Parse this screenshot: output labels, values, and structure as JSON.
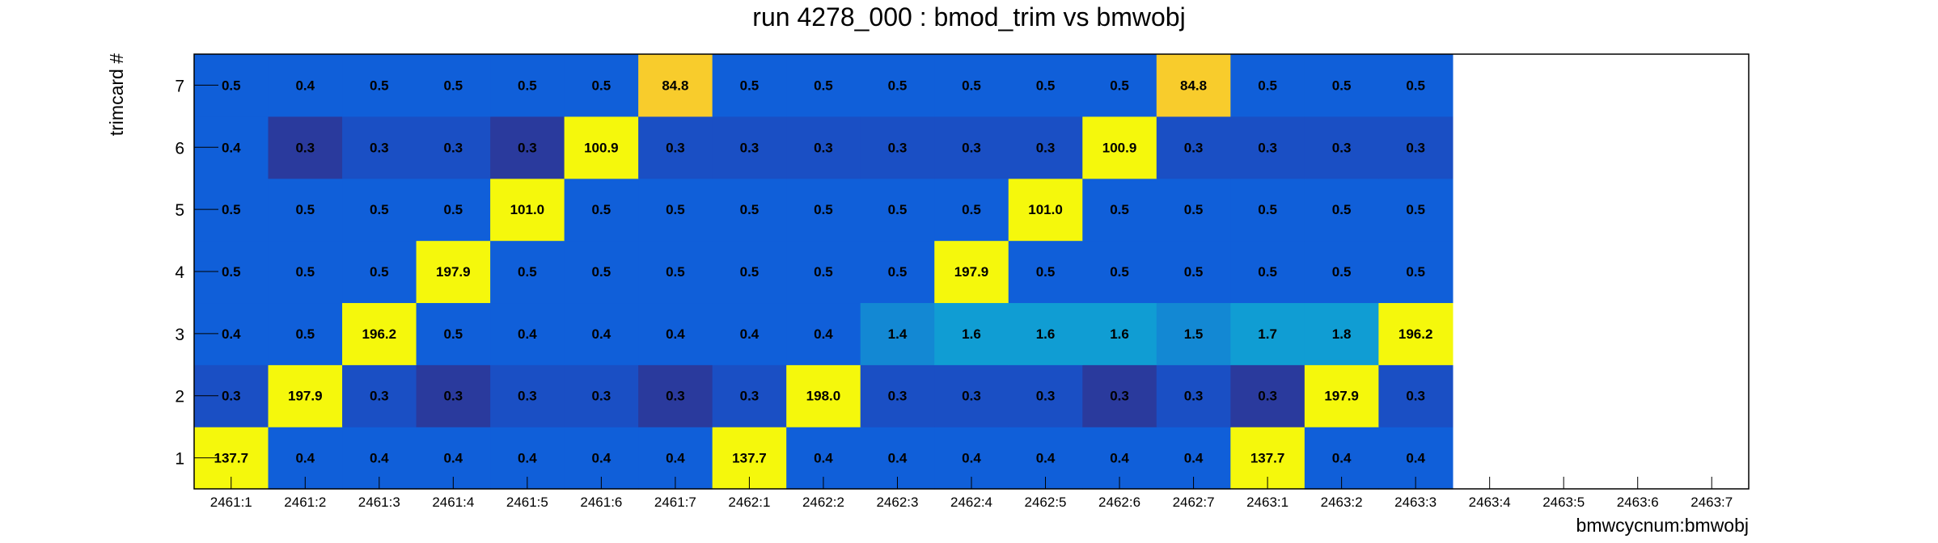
{
  "chart_data": {
    "type": "heatmap",
    "title": "run 4278_000 : bmod_trim vs bmwobj",
    "xlabel": "bmwcycnum:bmwobj",
    "ylabel": "trimcard #",
    "x_categories": [
      "2461:1",
      "2461:2",
      "2461:3",
      "2461:4",
      "2461:5",
      "2461:6",
      "2461:7",
      "2462:1",
      "2462:2",
      "2462:3",
      "2462:4",
      "2462:5",
      "2462:6",
      "2462:7",
      "2463:1",
      "2463:2",
      "2463:3",
      "2463:4",
      "2463:5",
      "2463:6",
      "2463:7"
    ],
    "y_categories": [
      "1",
      "2",
      "3",
      "4",
      "5",
      "6",
      "7"
    ],
    "values": [
      [
        "137.7",
        "0.4",
        "0.4",
        "0.4",
        "0.4",
        "0.4",
        "0.4",
        "137.7",
        "0.4",
        "0.4",
        "0.4",
        "0.4",
        "0.4",
        "0.4",
        "137.7",
        "0.4",
        "0.4",
        null,
        null,
        null,
        null
      ],
      [
        "0.3",
        "197.9",
        "0.3",
        "0.3",
        "0.3",
        "0.3",
        "0.3",
        "0.3",
        "198.0",
        "0.3",
        "0.3",
        "0.3",
        "0.3",
        "0.3",
        "0.3",
        "197.9",
        "0.3",
        null,
        null,
        null,
        null
      ],
      [
        "0.4",
        "0.5",
        "196.2",
        "0.5",
        "0.4",
        "0.4",
        "0.4",
        "0.4",
        "0.4",
        "1.4",
        "1.6",
        "1.6",
        "1.6",
        "1.5",
        "1.7",
        "1.8",
        "196.2",
        null,
        null,
        null,
        null
      ],
      [
        "0.5",
        "0.5",
        "0.5",
        "197.9",
        "0.5",
        "0.5",
        "0.5",
        "0.5",
        "0.5",
        "0.5",
        "197.9",
        "0.5",
        "0.5",
        "0.5",
        "0.5",
        "0.5",
        "0.5",
        null,
        null,
        null,
        null
      ],
      [
        "0.5",
        "0.5",
        "0.5",
        "0.5",
        "101.0",
        "0.5",
        "0.5",
        "0.5",
        "0.5",
        "0.5",
        "0.5",
        "101.0",
        "0.5",
        "0.5",
        "0.5",
        "0.5",
        "0.5",
        null,
        null,
        null,
        null
      ],
      [
        "0.4",
        "0.3",
        "0.3",
        "0.3",
        "0.3",
        "100.9",
        "0.3",
        "0.3",
        "0.3",
        "0.3",
        "0.3",
        "0.3",
        "100.9",
        "0.3",
        "0.3",
        "0.3",
        "0.3",
        null,
        null,
        null,
        null
      ],
      [
        "0.5",
        "0.4",
        "0.5",
        "0.5",
        "0.5",
        "0.5",
        "84.8",
        "0.5",
        "0.5",
        "0.5",
        "0.5",
        "0.5",
        "0.5",
        "84.8",
        "0.5",
        "0.5",
        "0.5",
        null,
        null,
        null,
        null
      ]
    ],
    "colors": {
      "high": "#f5f80c",
      "mid_high": "#f8cc2c",
      "cyan": "#109dd3",
      "teal": "#1388d3",
      "blue": "#105fd9",
      "mid_blue": "#1a4fc4",
      "dark_blue": "#2a3a9d",
      "frame": "#000000"
    },
    "legend": "none",
    "grid": false
  }
}
